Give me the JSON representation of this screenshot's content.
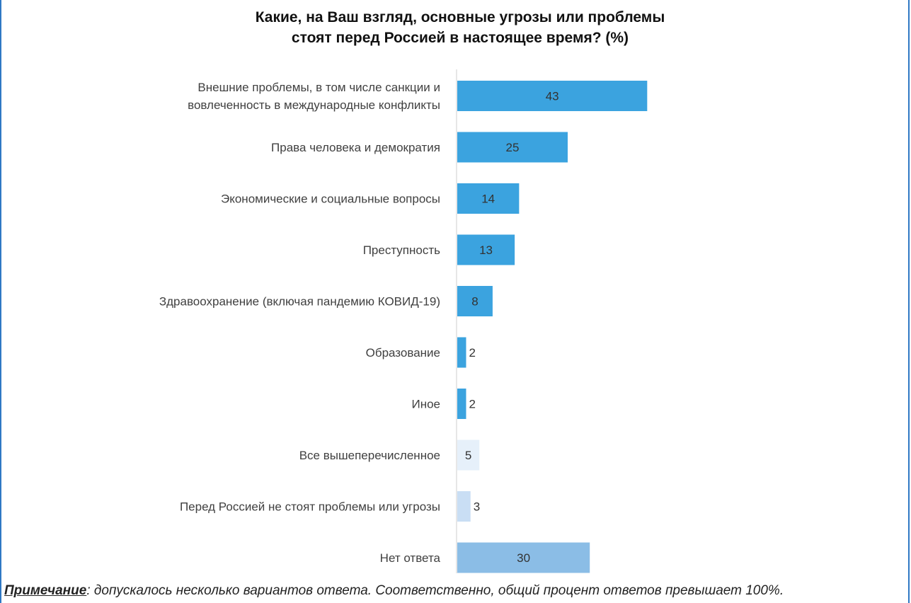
{
  "chart_data": {
    "type": "bar",
    "orientation": "horizontal",
    "title_lines": [
      "Какие, на Ваш взгляд, основные угрозы или проблемы",
      "стоят перед Россией в настоящее время? (%)"
    ],
    "categories": [
      [
        "Внешние проблемы, в том числе санкции и",
        "вовлеченность в международные конфликты"
      ],
      [
        "Права человека и демократия"
      ],
      [
        "Экономические и социальные вопросы"
      ],
      [
        "Преступность"
      ],
      [
        "Здравоохранение (включая пандемию КОВИД-19)"
      ],
      [
        "Образование"
      ],
      [
        "Иное"
      ],
      [
        "Все вышеперечисленное"
      ],
      [
        "Перед Россией не стоят проблемы или угрозы"
      ],
      [
        "Нет ответа"
      ]
    ],
    "values": [
      43,
      25,
      14,
      13,
      8,
      2,
      2,
      5,
      3,
      30
    ],
    "bar_colors": [
      "#3ba3df",
      "#3ba3df",
      "#3ba3df",
      "#3ba3df",
      "#3ba3df",
      "#3ba3df",
      "#3ba3df",
      "#e6f0fa",
      "#c9def4",
      "#8bbde6"
    ],
    "xlim": [
      0,
      100
    ],
    "grid": false,
    "legend": "none"
  },
  "note": {
    "label": "Примечание",
    "text": ": допускалось несколько вариантов ответа. Соответственно, общий процент ответов превышает 100%."
  }
}
